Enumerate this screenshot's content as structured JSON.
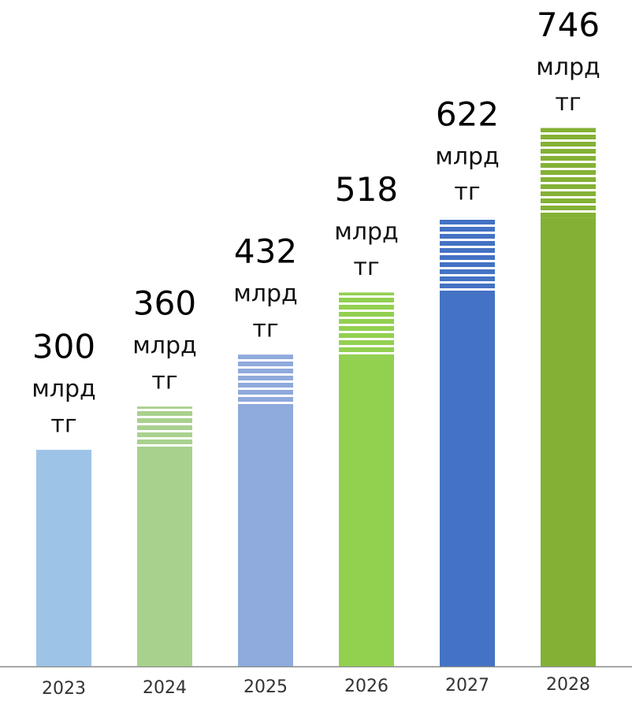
{
  "chart_data": {
    "type": "bar",
    "categories": [
      "2023",
      "2024",
      "2025",
      "2026",
      "2027",
      "2028"
    ],
    "values": [
      300,
      360,
      432,
      518,
      622,
      746
    ],
    "unit": [
      "млрд",
      "тг"
    ],
    "colors": [
      "#9dc3e6",
      "#a9d18e",
      "#8faadc",
      "#92d050",
      "#4472c4",
      "#84b135"
    ],
    "ylim": [
      0,
      800
    ]
  }
}
